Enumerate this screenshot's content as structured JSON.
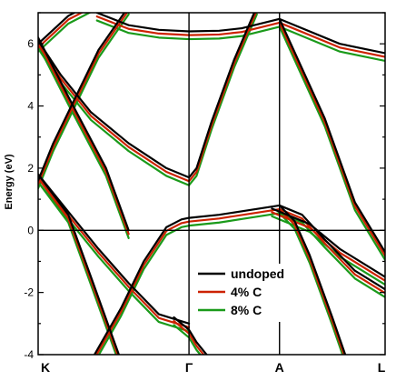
{
  "chart_data": {
    "type": "line",
    "title": "",
    "ylabel": "Energy (eV)",
    "xlabel": "",
    "ylim": [
      -4,
      7
    ],
    "y_ticks": [
      "6",
      "4",
      "2",
      "0",
      "-2",
      "-4"
    ],
    "k_points": [
      {
        "label": "K",
        "x": 0
      },
      {
        "label": "Γ",
        "x": 1
      },
      {
        "label": "A",
        "x": 1.6
      },
      {
        "label": "L",
        "x": 2.3
      }
    ],
    "fermi_level": 0,
    "legend": {
      "position": "lower-right",
      "entries": [
        "undoped",
        "4% C",
        "8% C"
      ]
    },
    "series": [
      {
        "name": "undoped",
        "color": "#000000",
        "shift": 0
      },
      {
        "name": "4% C",
        "color": "#cc2200",
        "shift": 0.12
      },
      {
        "name": "8% C",
        "color": "#1a9a1a",
        "shift": 0.25
      }
    ],
    "bands": [
      {
        "id": "cb-upper-left",
        "x": [
          0,
          0.2,
          0.45,
          0.6
        ],
        "y": [
          6.2,
          4.3,
          2.0,
          0
        ]
      },
      {
        "id": "cb-top-k-up",
        "x": [
          0,
          0.2,
          0.4
        ],
        "y": [
          6.0,
          6.9,
          7.4
        ]
      },
      {
        "id": "cb-top-flat",
        "x": [
          0.39,
          0.6,
          0.8,
          1.0,
          1.2,
          1.35
        ],
        "y": [
          7.0,
          6.6,
          6.45,
          6.4,
          6.42,
          6.5
        ]
      },
      {
        "id": "cb-top-rise",
        "x": [
          1.35,
          1.6,
          2.0,
          2.3
        ],
        "y": [
          6.5,
          6.8,
          6.0,
          5.7
        ]
      },
      {
        "id": "cb-k-down",
        "x": [
          0,
          0.15,
          0.35,
          0.6,
          0.85,
          1.0
        ],
        "y": [
          6.1,
          5.0,
          3.8,
          2.8,
          2.0,
          1.7
        ]
      },
      {
        "id": "cb-g-up",
        "x": [
          1.0,
          1.05,
          1.15,
          1.3,
          1.45
        ],
        "y": [
          1.7,
          2.0,
          3.5,
          5.5,
          7.2
        ]
      },
      {
        "id": "cb-k-low-up",
        "x": [
          0,
          0.1,
          0.25,
          0.4,
          0.6
        ],
        "y": [
          1.6,
          2.8,
          4.3,
          5.8,
          7.2
        ]
      },
      {
        "id": "vb-top-k",
        "x": [
          0,
          0.2,
          0.4,
          0.6,
          0.8,
          1.0
        ],
        "y": [
          1.8,
          0.6,
          -0.6,
          -1.7,
          -2.7,
          -3.0
        ]
      },
      {
        "id": "vb-k-down",
        "x": [
          0,
          0.2,
          0.35,
          0.55
        ],
        "y": [
          1.8,
          0.5,
          -1.5,
          -4.2
        ]
      },
      {
        "id": "vb-g-left",
        "x": [
          0.35,
          0.55,
          0.7,
          0.85,
          0.95,
          1.0
        ],
        "y": [
          -4.2,
          -2.5,
          -1.0,
          0.1,
          0.35,
          0.4
        ]
      },
      {
        "id": "vb-g-right",
        "x": [
          1.0,
          1.2,
          1.4,
          1.6
        ],
        "y": [
          0.4,
          0.5,
          0.65,
          0.8
        ]
      },
      {
        "id": "vb-a-l-a",
        "x": [
          1.6,
          1.75,
          1.9,
          2.1,
          2.3
        ],
        "y": [
          0.8,
          0.5,
          -0.3,
          -1.3,
          -1.9
        ]
      },
      {
        "id": "vb-a-l-b",
        "x": [
          1.6,
          1.7,
          1.8,
          1.95,
          2.05
        ],
        "y": [
          0.8,
          0.3,
          -0.8,
          -2.8,
          -4.2
        ]
      },
      {
        "id": "vb-a-l-c",
        "x": [
          1.55,
          1.8,
          2.0,
          2.3
        ],
        "y": [
          0.7,
          0.2,
          -0.6,
          -1.5
        ]
      },
      {
        "id": "vb-g-low",
        "x": [
          0.9,
          1.0,
          1.05,
          1.15
        ],
        "y": [
          -2.8,
          -3.2,
          -3.6,
          -4.2
        ]
      },
      {
        "id": "cb-a-l-down",
        "x": [
          1.6,
          1.9,
          2.1,
          2.3
        ],
        "y": [
          6.8,
          3.6,
          0.9,
          -0.7
        ]
      }
    ]
  }
}
